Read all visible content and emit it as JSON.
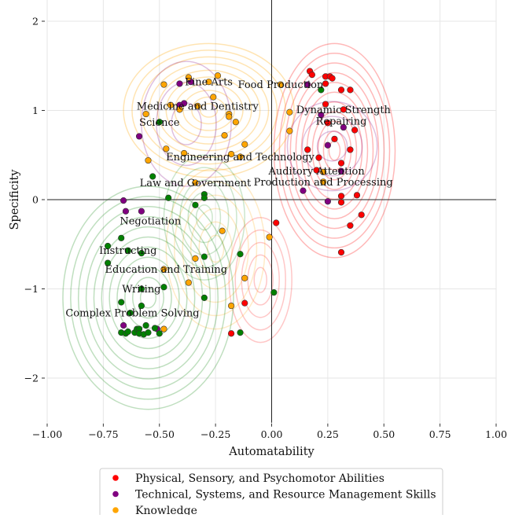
{
  "chart_data": {
    "type": "scatter",
    "xlabel": "Automatability",
    "ylabel": "Specificity",
    "xlim": [
      -1.0,
      1.0
    ],
    "ylim": [
      -2.5,
      2.25
    ],
    "xticks": [
      "−1.00",
      "−0.75",
      "−0.50",
      "−0.25",
      "0.00",
      "0.25",
      "0.50",
      "0.75",
      "1.00"
    ],
    "xtick_values": [
      -1,
      -0.75,
      -0.5,
      -0.25,
      0,
      0.25,
      0.5,
      0.75,
      1
    ],
    "yticks": [
      "−2",
      "−1",
      "0",
      "1",
      "2"
    ],
    "ytick_values": [
      -2,
      -1,
      0,
      1,
      2
    ],
    "grid": true,
    "kde_contours": true,
    "reference_lines": {
      "x": 0,
      "y": 0
    },
    "legend_placement": "bottom-center",
    "series": [
      {
        "name": "Physical, Sensory, and Psychomotor Abilities",
        "color": "#ff0000",
        "points": [
          [
            0.17,
            1.44
          ],
          [
            0.18,
            1.4
          ],
          [
            0.24,
            1.38
          ],
          [
            0.26,
            1.38
          ],
          [
            0.27,
            1.36
          ],
          [
            0.24,
            1.3
          ],
          [
            0.31,
            1.23
          ],
          [
            0.35,
            1.23
          ],
          [
            0.24,
            1.07
          ],
          [
            0.32,
            1.01
          ],
          [
            0.25,
            0.86
          ],
          [
            0.28,
            0.68
          ],
          [
            0.37,
            0.78
          ],
          [
            0.16,
            0.56
          ],
          [
            0.21,
            0.47
          ],
          [
            0.35,
            0.56
          ],
          [
            0.31,
            0.41
          ],
          [
            0.2,
            0.33
          ],
          [
            0.31,
            0.04
          ],
          [
            0.38,
            0.05
          ],
          [
            0.31,
            -0.03
          ],
          [
            0.4,
            -0.17
          ],
          [
            0.35,
            -0.29
          ],
          [
            0.02,
            -0.26
          ],
          [
            0.31,
            -0.59
          ],
          [
            -0.12,
            -1.16
          ],
          [
            -0.18,
            -1.5
          ]
        ]
      },
      {
        "name": "Technical, Systems, and Resource Management Skills",
        "color": "#800080",
        "points": [
          [
            0.16,
            1.29
          ],
          [
            0.22,
            0.95
          ],
          [
            0.32,
            0.81
          ],
          [
            0.25,
            0.61
          ],
          [
            0.31,
            0.32
          ],
          [
            0.14,
            0.1
          ],
          [
            0.25,
            -0.02
          ],
          [
            -0.41,
            1.3
          ],
          [
            -0.36,
            1.32
          ],
          [
            -0.39,
            1.08
          ],
          [
            -0.41,
            1.06
          ],
          [
            -0.59,
            0.71
          ],
          [
            -0.66,
            -0.01
          ],
          [
            -0.65,
            -0.13
          ],
          [
            -0.58,
            -0.13
          ],
          [
            -0.66,
            -1.41
          ],
          [
            -0.51,
            -1.45
          ]
        ]
      },
      {
        "name": "Knowledge",
        "color": "#ffa500",
        "points": [
          [
            -0.48,
            1.29
          ],
          [
            -0.37,
            1.37
          ],
          [
            -0.24,
            1.39
          ],
          [
            -0.28,
            1.32
          ],
          [
            -0.26,
            1.15
          ],
          [
            -0.45,
            1.06
          ],
          [
            -0.33,
            1.05
          ],
          [
            -0.41,
            1.01
          ],
          [
            -0.56,
            0.96
          ],
          [
            -0.19,
            0.96
          ],
          [
            -0.19,
            0.93
          ],
          [
            -0.16,
            0.87
          ],
          [
            -0.21,
            0.72
          ],
          [
            -0.12,
            0.62
          ],
          [
            -0.47,
            0.57
          ],
          [
            -0.39,
            0.52
          ],
          [
            -0.18,
            0.51
          ],
          [
            -0.14,
            0.48
          ],
          [
            -0.55,
            0.44
          ],
          [
            -0.34,
            0.19
          ],
          [
            0.04,
            1.29
          ],
          [
            0.08,
            0.98
          ],
          [
            0.08,
            0.77
          ],
          [
            0.23,
            0.31
          ],
          [
            0.23,
            0.2
          ],
          [
            -0.01,
            -0.42
          ],
          [
            -0.22,
            -0.35
          ],
          [
            -0.34,
            -0.66
          ],
          [
            -0.48,
            -0.78
          ],
          [
            -0.37,
            -0.93
          ],
          [
            -0.12,
            -0.88
          ],
          [
            -0.18,
            -1.19
          ],
          [
            -0.48,
            -1.45
          ]
        ]
      },
      {
        "color": "#008000",
        "points": [
          [
            0.22,
            1.23
          ],
          [
            -0.5,
            0.87
          ],
          [
            -0.53,
            0.26
          ],
          [
            -0.46,
            0.02
          ],
          [
            -0.3,
            0.06
          ],
          [
            -0.3,
            0.02
          ],
          [
            -0.34,
            -0.06
          ],
          [
            -0.67,
            -0.43
          ],
          [
            -0.73,
            -0.52
          ],
          [
            -0.64,
            -0.57
          ],
          [
            -0.58,
            -0.6
          ],
          [
            -0.73,
            -0.71
          ],
          [
            -0.3,
            -0.64
          ],
          [
            -0.14,
            -0.61
          ],
          [
            -0.48,
            -0.98
          ],
          [
            -0.58,
            -1.0
          ],
          [
            -0.67,
            -1.15
          ],
          [
            -0.58,
            -1.19
          ],
          [
            -0.3,
            -1.1
          ],
          [
            0.01,
            -1.04
          ],
          [
            -0.14,
            -1.49
          ],
          [
            -0.63,
            -1.27
          ],
          [
            -0.67,
            -1.49
          ],
          [
            -0.65,
            -1.5
          ],
          [
            -0.64,
            -1.48
          ],
          [
            -0.61,
            -1.49
          ],
          [
            -0.6,
            -1.45
          ],
          [
            -0.59,
            -1.45
          ],
          [
            -0.59,
            -1.5
          ],
          [
            -0.57,
            -1.51
          ],
          [
            -0.56,
            -1.41
          ],
          [
            -0.55,
            -1.49
          ],
          [
            -0.52,
            -1.44
          ],
          [
            -0.5,
            -1.5
          ]
        ]
      }
    ],
    "annotations": [
      {
        "text": "Fine Arts",
        "x": -0.28,
        "y": 1.32
      },
      {
        "text": "Food Production",
        "x": 0.04,
        "y": 1.29
      },
      {
        "text": "Medicine and Dentistry",
        "x": -0.33,
        "y": 1.05
      },
      {
        "text": "Science",
        "x": -0.5,
        "y": 0.87
      },
      {
        "text": "Dynamic Strength",
        "x": 0.32,
        "y": 1.01
      },
      {
        "text": "Repairing",
        "x": 0.31,
        "y": 0.88
      },
      {
        "text": "Engineering and Technology",
        "x": -0.14,
        "y": 0.48
      },
      {
        "text": "Auditory Attention",
        "x": 0.2,
        "y": 0.32
      },
      {
        "text": "Law and Government",
        "x": -0.34,
        "y": 0.19
      },
      {
        "text": "Production and Processing",
        "x": 0.23,
        "y": 0.2
      },
      {
        "text": "Negotiation",
        "x": -0.54,
        "y": -0.24
      },
      {
        "text": "Instructing",
        "x": -0.64,
        "y": -0.57
      },
      {
        "text": "Education and Training",
        "x": -0.47,
        "y": -0.78
      },
      {
        "text": "Writing",
        "x": -0.58,
        "y": -1.0
      },
      {
        "text": "Complex Problem Solving",
        "x": -0.62,
        "y": -1.27
      }
    ]
  }
}
